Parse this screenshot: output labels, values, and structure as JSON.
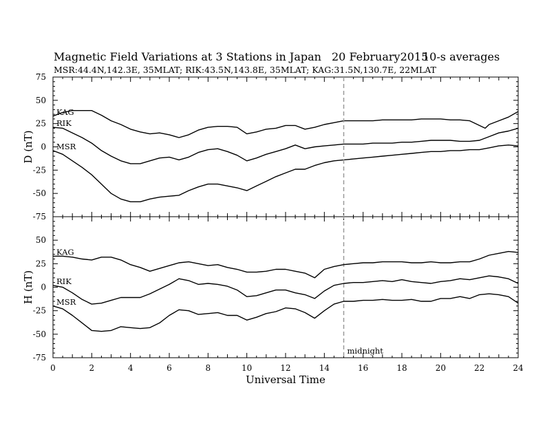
{
  "header": {
    "title": "Magnetic Field Variations at 3 Stations in Japan",
    "date": "20 February2015",
    "averaging": "10-s averages",
    "subtitle": "MSR:44.4N,142.3E, 35MLAT;  RIK:43.5N,143.8E, 35MLAT;  KAG:31.5N,130.7E, 22MLAT"
  },
  "chart_data": [
    {
      "type": "line",
      "panel": "top",
      "ylabel": "D (nT)",
      "xlabel": "Universal Time",
      "xlim": [
        0,
        24
      ],
      "ylim": [
        -75,
        75
      ],
      "x_ticks": [
        0,
        2,
        4,
        6,
        8,
        10,
        12,
        14,
        16,
        18,
        20,
        22,
        24
      ],
      "y_ticks": [
        75,
        50,
        25,
        0,
        -25,
        -50,
        -75
      ],
      "series": [
        {
          "name": "KAG",
          "x": [
            0,
            0.5,
            1,
            1.5,
            2,
            2.5,
            3,
            3.5,
            4,
            4.5,
            5,
            5.5,
            6,
            6.5,
            7,
            7.5,
            8,
            8.5,
            9,
            9.5,
            10,
            10.5,
            11,
            11.5,
            12,
            12.5,
            13,
            13.5,
            14,
            14.5,
            15,
            15.5,
            16,
            16.5,
            17,
            17.5,
            18,
            18.5,
            19,
            19.5,
            20,
            20.5,
            21,
            21.5,
            22,
            22.3,
            22.5,
            23,
            23.5,
            24
          ],
          "y": [
            33,
            37,
            39,
            39,
            39,
            34,
            28,
            24,
            19,
            16,
            14,
            15,
            13,
            10,
            13,
            18,
            21,
            22,
            22,
            21,
            14,
            16,
            19,
            20,
            23,
            23,
            19,
            21,
            24,
            26,
            28,
            28,
            28,
            28,
            29,
            29,
            29,
            29,
            30,
            30,
            30,
            29,
            29,
            28,
            23,
            20,
            24,
            28,
            32,
            38
          ]
        },
        {
          "name": "RIK",
          "x": [
            0,
            0.5,
            1,
            1.5,
            2,
            2.5,
            3,
            3.5,
            4,
            4.5,
            5,
            5.5,
            6,
            6.5,
            7,
            7.5,
            8,
            8.5,
            9,
            9.5,
            10,
            10.5,
            11,
            11.5,
            12,
            12.5,
            13,
            13.5,
            14,
            14.5,
            15,
            15.5,
            16,
            16.5,
            17,
            17.5,
            18,
            18.5,
            19,
            19.5,
            20,
            20.5,
            21,
            21.5,
            22,
            22.5,
            23,
            23.5,
            24
          ],
          "y": [
            21,
            20,
            15,
            10,
            4,
            -4,
            -10,
            -15,
            -18,
            -18,
            -15,
            -12,
            -11,
            -14,
            -11,
            -6,
            -3,
            -2,
            -5,
            -9,
            -15,
            -12,
            -8,
            -5,
            -2,
            2,
            -2,
            0,
            1,
            2,
            3,
            3,
            3,
            4,
            4,
            4,
            5,
            5,
            6,
            7,
            7,
            7,
            6,
            6,
            7,
            11,
            15,
            17,
            20
          ]
        },
        {
          "name": "MSR",
          "x": [
            0,
            0.5,
            1,
            1.5,
            2,
            2.5,
            3,
            3.5,
            4,
            4.5,
            5,
            5.5,
            6,
            6.5,
            7,
            7.5,
            8,
            8.5,
            9,
            9.5,
            10,
            10.5,
            11,
            11.5,
            12,
            12.5,
            13,
            13.5,
            14,
            14.5,
            15,
            15.5,
            16,
            16.5,
            17,
            17.5,
            18,
            18.5,
            19,
            19.5,
            20,
            20.5,
            21,
            21.5,
            22,
            22.5,
            23,
            23.5,
            24
          ],
          "y": [
            -4,
            -8,
            -15,
            -22,
            -30,
            -40,
            -50,
            -56,
            -59,
            -59,
            -56,
            -54,
            -53,
            -52,
            -47,
            -43,
            -40,
            -40,
            -42,
            -44,
            -47,
            -42,
            -37,
            -32,
            -28,
            -24,
            -24,
            -20,
            -17,
            -15,
            -14,
            -13,
            -12,
            -11,
            -10,
            -9,
            -8,
            -7,
            -6,
            -5,
            -5,
            -4,
            -4,
            -3,
            -3,
            -1,
            1,
            2,
            1
          ]
        }
      ]
    },
    {
      "type": "line",
      "panel": "bottom",
      "ylabel": "H (nT)",
      "xlabel": "Universal Time",
      "xlim": [
        0,
        24
      ],
      "ylim": [
        -75,
        75
      ],
      "x_ticks": [
        0,
        2,
        4,
        6,
        8,
        10,
        12,
        14,
        16,
        18,
        20,
        22,
        24
      ],
      "y_ticks": [
        75,
        50,
        25,
        0,
        -25,
        -50,
        -75
      ],
      "annotation": "midnight",
      "midnight_ut": 15,
      "series": [
        {
          "name": "KAG",
          "x": [
            0,
            0.5,
            1,
            1.5,
            2,
            2.5,
            3,
            3.5,
            4,
            4.5,
            5,
            5.5,
            6,
            6.5,
            7,
            7.5,
            8,
            8.5,
            9,
            9.5,
            10,
            10.5,
            11,
            11.5,
            12,
            12.5,
            13,
            13.5,
            14,
            14.5,
            15,
            15.5,
            16,
            16.5,
            17,
            17.5,
            18,
            18.5,
            19,
            19.5,
            20,
            20.5,
            21,
            21.5,
            22,
            22.5,
            23,
            23.5,
            24
          ],
          "y": [
            33,
            33,
            32,
            30,
            29,
            32,
            32,
            29,
            24,
            21,
            17,
            20,
            23,
            26,
            27,
            25,
            23,
            24,
            21,
            19,
            16,
            16,
            17,
            19,
            19,
            17,
            15,
            10,
            19,
            22,
            24,
            25,
            26,
            26,
            27,
            27,
            27,
            26,
            26,
            27,
            26,
            26,
            27,
            27,
            30,
            34,
            36,
            38,
            37
          ]
        },
        {
          "name": "RIK",
          "x": [
            0,
            0.5,
            1,
            1.5,
            2,
            2.5,
            3,
            3.5,
            4,
            4.5,
            5,
            5.5,
            6,
            6.5,
            7,
            7.5,
            8,
            8.5,
            9,
            9.5,
            10,
            10.5,
            11,
            11.5,
            12,
            12.5,
            13,
            13.5,
            14,
            14.5,
            15,
            15.5,
            16,
            16.5,
            17,
            17.5,
            18,
            18.5,
            19,
            19.5,
            20,
            20.5,
            21,
            21.5,
            22,
            22.5,
            23,
            23.5,
            24
          ],
          "y": [
            2,
            0,
            -6,
            -13,
            -18,
            -17,
            -14,
            -11,
            -11,
            -11,
            -7,
            -2,
            3,
            9,
            7,
            3,
            4,
            3,
            1,
            -3,
            -10,
            -9,
            -6,
            -3,
            -3,
            -6,
            -8,
            -12,
            -4,
            2,
            4,
            5,
            5,
            6,
            7,
            6,
            8,
            6,
            5,
            4,
            6,
            7,
            9,
            8,
            10,
            12,
            11,
            9,
            4
          ]
        },
        {
          "name": "MSR",
          "x": [
            0,
            0.5,
            1,
            1.5,
            2,
            2.5,
            3,
            3.5,
            4,
            4.5,
            5,
            5.5,
            6,
            6.5,
            7,
            7.5,
            8,
            8.5,
            9,
            9.5,
            10,
            10.5,
            11,
            11.5,
            12,
            12.5,
            13,
            13.5,
            14,
            14.5,
            15,
            15.5,
            16,
            16.5,
            17,
            17.5,
            18,
            18.5,
            19,
            19.5,
            20,
            20.5,
            21,
            21.5,
            22,
            22.5,
            23,
            23.5,
            24
          ],
          "y": [
            -20,
            -23,
            -30,
            -38,
            -46,
            -47,
            -46,
            -42,
            -43,
            -44,
            -43,
            -38,
            -30,
            -24,
            -25,
            -29,
            -28,
            -27,
            -30,
            -30,
            -35,
            -32,
            -28,
            -26,
            -22,
            -23,
            -27,
            -33,
            -25,
            -18,
            -15,
            -15,
            -14,
            -14,
            -13,
            -14,
            -14,
            -13,
            -15,
            -15,
            -12,
            -12,
            -10,
            -12,
            -8,
            -7,
            -8,
            -10,
            -17
          ]
        }
      ]
    }
  ]
}
